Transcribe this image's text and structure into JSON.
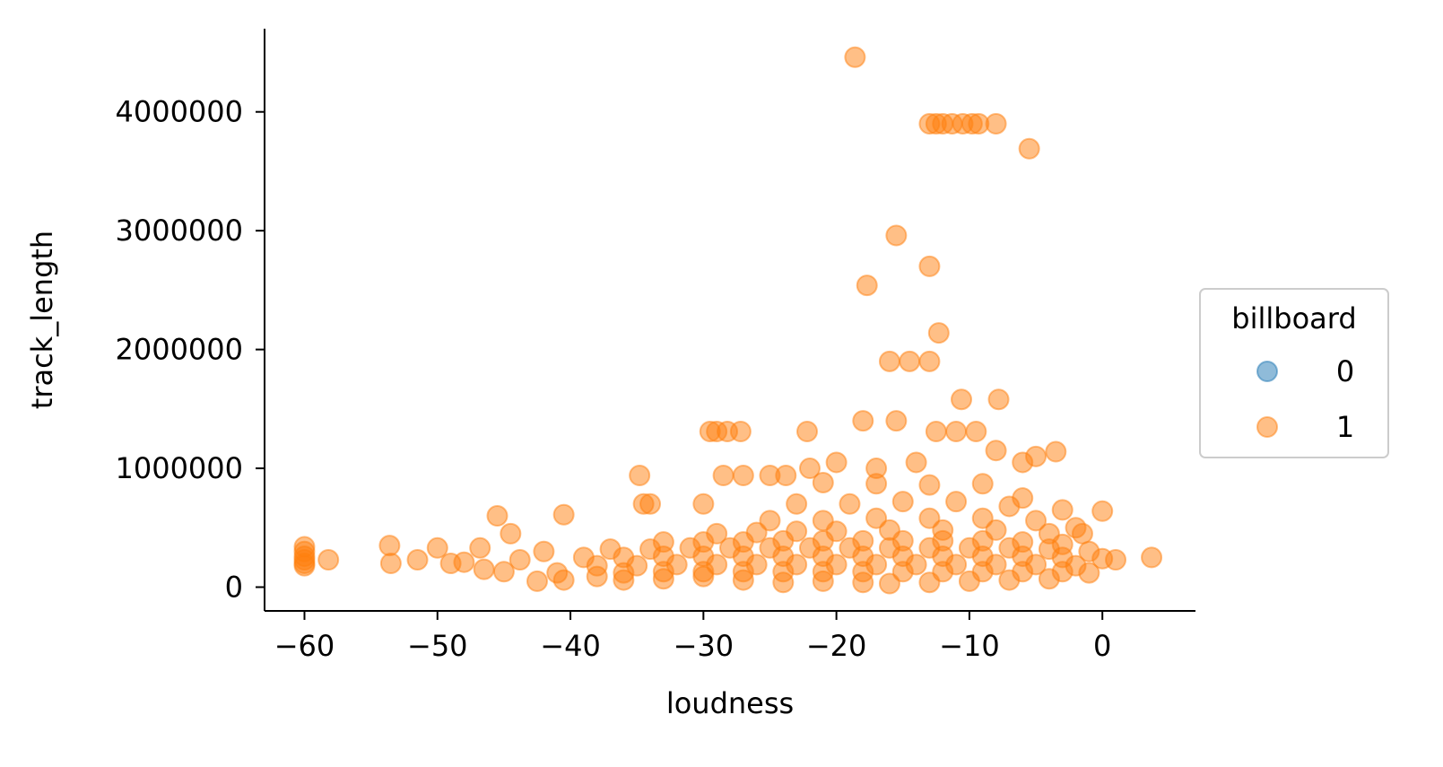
{
  "chart_data": {
    "type": "scatter",
    "title": "",
    "xlabel": "loudness",
    "ylabel": "track_length",
    "xlim": [
      -63,
      7
    ],
    "ylim": [
      -200000,
      4700000
    ],
    "xticks": [
      -60,
      -50,
      -40,
      -30,
      -20,
      -10,
      0
    ],
    "xtick_labels": [
      "−60",
      "−50",
      "−40",
      "−30",
      "−20",
      "−10",
      "0"
    ],
    "yticks": [
      0,
      1000000,
      2000000,
      3000000,
      4000000
    ],
    "ytick_labels": [
      "0",
      "1000000",
      "2000000",
      "3000000",
      "4000000"
    ],
    "grid": false,
    "legend": {
      "title": "billboard",
      "placement": "right"
    },
    "series": [
      {
        "name": "0",
        "color": "#1f77b4",
        "points": []
      },
      {
        "name": "1",
        "color": "#ff7f0e",
        "points": [
          [
            -18.6,
            4460000
          ],
          [
            -13,
            3900000
          ],
          [
            -12.5,
            3900000
          ],
          [
            -12,
            3900000
          ],
          [
            -11.3,
            3900000
          ],
          [
            -10.5,
            3900000
          ],
          [
            -9.8,
            3900000
          ],
          [
            -9.3,
            3900000
          ],
          [
            -8,
            3900000
          ],
          [
            -5.5,
            3690000
          ],
          [
            -15.5,
            2960000
          ],
          [
            -13,
            2700000
          ],
          [
            -17.7,
            2540000
          ],
          [
            -12.3,
            2140000
          ],
          [
            -16,
            1900000
          ],
          [
            -14.5,
            1900000
          ],
          [
            -13,
            1900000
          ],
          [
            -10.6,
            1580000
          ],
          [
            -7.8,
            1580000
          ],
          [
            -18,
            1400000
          ],
          [
            -15.5,
            1400000
          ],
          [
            -29.5,
            1310000
          ],
          [
            -29,
            1310000
          ],
          [
            -28.2,
            1310000
          ],
          [
            -27.2,
            1310000
          ],
          [
            -22.2,
            1310000
          ],
          [
            -12.5,
            1310000
          ],
          [
            -11,
            1310000
          ],
          [
            -9.5,
            1310000
          ],
          [
            -34.8,
            940000
          ],
          [
            -28.5,
            940000
          ],
          [
            -27,
            940000
          ],
          [
            -25,
            940000
          ],
          [
            -23.8,
            940000
          ],
          [
            -34.5,
            700000
          ],
          [
            -34,
            700000
          ],
          [
            -30,
            700000
          ],
          [
            -40.5,
            610000
          ],
          [
            -45.5,
            600000
          ],
          [
            -44.5,
            450000
          ],
          [
            -53.6,
            350000
          ],
          [
            -50,
            330000
          ],
          [
            -46.8,
            330000
          ],
          [
            -60,
            340000
          ],
          [
            -60,
            300000
          ],
          [
            -60,
            260000
          ],
          [
            -60,
            230000
          ],
          [
            -60,
            200000
          ],
          [
            -60,
            180000
          ],
          [
            -58.2,
            230000
          ],
          [
            -53.5,
            200000
          ],
          [
            -51.5,
            230000
          ],
          [
            -49,
            200000
          ],
          [
            -48,
            210000
          ],
          [
            -46.5,
            150000
          ],
          [
            -45,
            130000
          ],
          [
            -43.8,
            230000
          ],
          [
            -42,
            300000
          ],
          [
            -41,
            120000
          ],
          [
            -42.5,
            50000
          ],
          [
            -40.5,
            60000
          ],
          [
            -38,
            90000
          ],
          [
            -36,
            60000
          ],
          [
            -33,
            70000
          ],
          [
            -30,
            90000
          ],
          [
            -27,
            60000
          ],
          [
            -24,
            40000
          ],
          [
            -21,
            50000
          ],
          [
            -18,
            40000
          ],
          [
            -16,
            30000
          ],
          [
            -13,
            40000
          ],
          [
            -10,
            50000
          ],
          [
            -7,
            60000
          ],
          [
            -4,
            70000
          ],
          [
            -1,
            120000
          ],
          [
            1,
            230000
          ],
          [
            3.7,
            250000
          ],
          [
            0,
            640000
          ],
          [
            -1.5,
            450000
          ],
          [
            -3.5,
            1140000
          ],
          [
            -5,
            1100000
          ],
          [
            -6,
            1050000
          ],
          [
            -8,
            1150000
          ],
          [
            -20,
            1050000
          ],
          [
            -22,
            1000000
          ],
          [
            -17,
            1000000
          ],
          [
            -14,
            1050000
          ],
          [
            -21,
            880000
          ],
          [
            -17,
            870000
          ],
          [
            -13,
            860000
          ],
          [
            -9,
            870000
          ],
          [
            -6,
            750000
          ],
          [
            -3,
            650000
          ],
          [
            -23,
            700000
          ],
          [
            -19,
            700000
          ],
          [
            -15,
            720000
          ],
          [
            -11,
            720000
          ],
          [
            -7,
            680000
          ],
          [
            -25,
            560000
          ],
          [
            -21,
            560000
          ],
          [
            -17,
            580000
          ],
          [
            -13,
            580000
          ],
          [
            -9,
            580000
          ],
          [
            -5,
            560000
          ],
          [
            -2,
            500000
          ],
          [
            -29,
            450000
          ],
          [
            -26,
            460000
          ],
          [
            -23,
            470000
          ],
          [
            -20,
            470000
          ],
          [
            -16,
            480000
          ],
          [
            -12,
            480000
          ],
          [
            -8,
            480000
          ],
          [
            -4,
            450000
          ],
          [
            -33,
            380000
          ],
          [
            -30,
            380000
          ],
          [
            -27,
            380000
          ],
          [
            -24,
            390000
          ],
          [
            -21,
            390000
          ],
          [
            -18,
            390000
          ],
          [
            -15,
            390000
          ],
          [
            -12,
            390000
          ],
          [
            -9,
            390000
          ],
          [
            -6,
            380000
          ],
          [
            -3,
            360000
          ],
          [
            -37,
            320000
          ],
          [
            -34,
            320000
          ],
          [
            -31,
            330000
          ],
          [
            -28,
            330000
          ],
          [
            -25,
            330000
          ],
          [
            -22,
            330000
          ],
          [
            -19,
            330000
          ],
          [
            -16,
            330000
          ],
          [
            -13,
            330000
          ],
          [
            -10,
            330000
          ],
          [
            -7,
            330000
          ],
          [
            -4,
            320000
          ],
          [
            -1,
            300000
          ],
          [
            -39,
            250000
          ],
          [
            -36,
            250000
          ],
          [
            -33,
            260000
          ],
          [
            -30,
            260000
          ],
          [
            -27,
            260000
          ],
          [
            -24,
            260000
          ],
          [
            -21,
            260000
          ],
          [
            -18,
            260000
          ],
          [
            -15,
            260000
          ],
          [
            -12,
            260000
          ],
          [
            -9,
            260000
          ],
          [
            -6,
            260000
          ],
          [
            -3,
            250000
          ],
          [
            0,
            240000
          ],
          [
            -38,
            180000
          ],
          [
            -35,
            180000
          ],
          [
            -32,
            190000
          ],
          [
            -29,
            190000
          ],
          [
            -26,
            190000
          ],
          [
            -23,
            190000
          ],
          [
            -20,
            190000
          ],
          [
            -17,
            190000
          ],
          [
            -14,
            190000
          ],
          [
            -11,
            190000
          ],
          [
            -8,
            190000
          ],
          [
            -5,
            190000
          ],
          [
            -2,
            180000
          ],
          [
            -36,
            120000
          ],
          [
            -33,
            130000
          ],
          [
            -30,
            130000
          ],
          [
            -27,
            130000
          ],
          [
            -24,
            130000
          ],
          [
            -21,
            130000
          ],
          [
            -18,
            130000
          ],
          [
            -15,
            130000
          ],
          [
            -12,
            130000
          ],
          [
            -9,
            130000
          ],
          [
            -6,
            130000
          ],
          [
            -3,
            130000
          ]
        ]
      }
    ]
  }
}
